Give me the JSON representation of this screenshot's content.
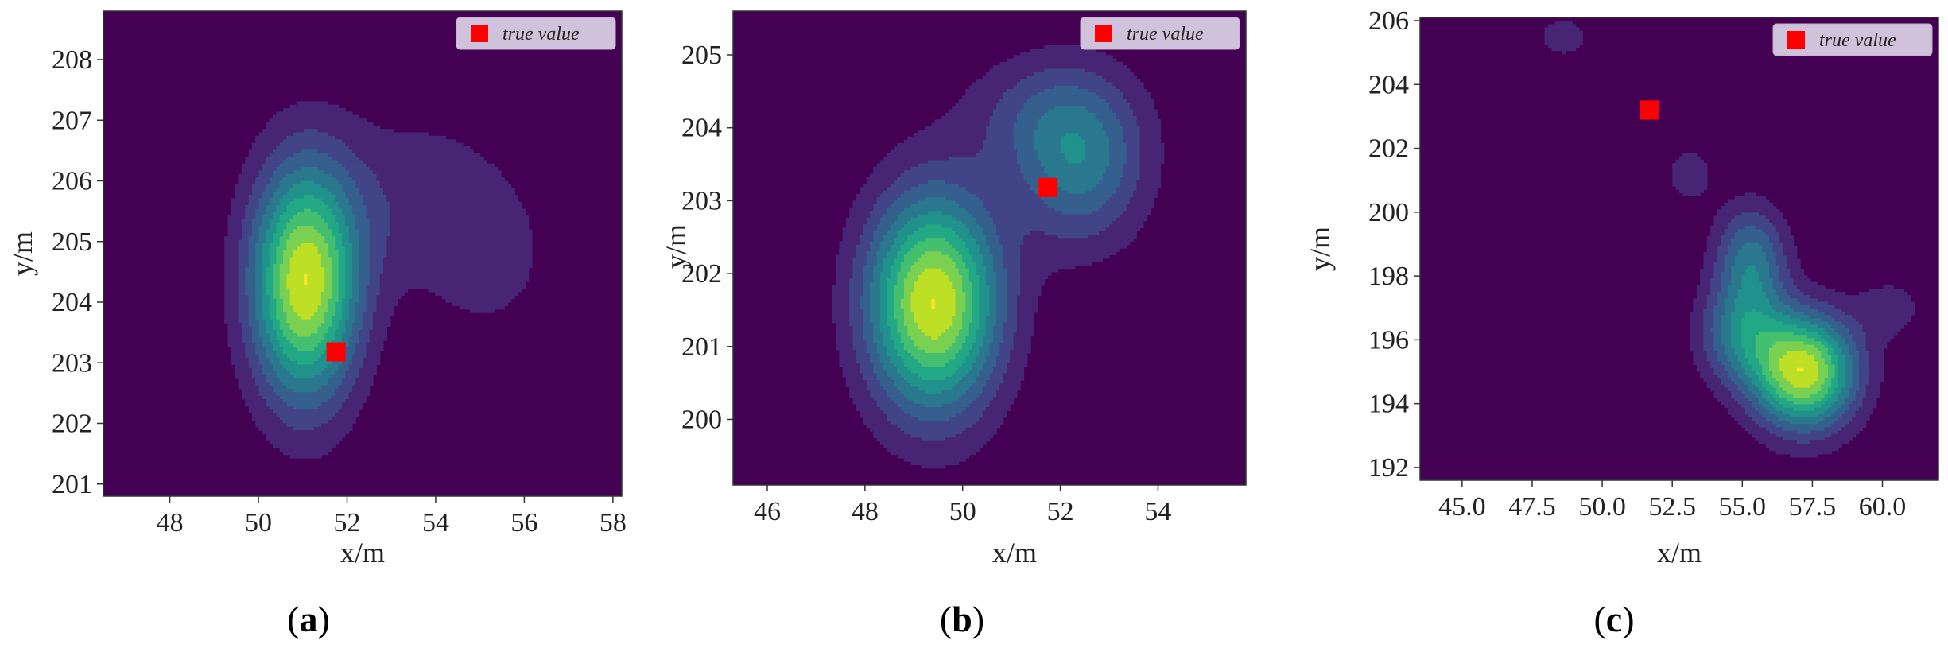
{
  "colors": {
    "background": "#440154",
    "marker": "#ff0000",
    "legend_bg": "#dcd3e6",
    "colormap": "viridis"
  },
  "chart_data": [
    {
      "id": "a",
      "type": "contour",
      "caption": "a",
      "xlabel": "x/m",
      "ylabel": "y/m",
      "xlim": [
        46.5,
        58.2
      ],
      "ylim": [
        200.8,
        208.8
      ],
      "xticks": [
        48,
        50,
        52,
        54,
        56,
        58
      ],
      "yticks": [
        201,
        202,
        203,
        204,
        205,
        206,
        207,
        208
      ],
      "legend": {
        "label": "true value",
        "position": "top-right"
      },
      "true_value": {
        "x": 51.75,
        "y": 203.18
      },
      "density_components": [
        {
          "x": 51.05,
          "y": 204.3,
          "sx": 0.85,
          "sy": 1.35,
          "w": 1.0
        },
        {
          "x": 53.6,
          "y": 205.7,
          "sx": 1.7,
          "sy": 1.1,
          "w": 0.16
        },
        {
          "x": 55.2,
          "y": 204.6,
          "sx": 0.9,
          "sy": 0.8,
          "w": 0.12
        }
      ]
    },
    {
      "id": "b",
      "type": "contour",
      "caption": "b",
      "xlabel": "x/m",
      "ylabel": "y/m",
      "xlim": [
        45.3,
        55.8
      ],
      "ylim": [
        199.1,
        205.6
      ],
      "xticks": [
        46,
        48,
        50,
        52,
        54
      ],
      "yticks": [
        200,
        201,
        202,
        203,
        204,
        205
      ],
      "legend": {
        "label": "true value",
        "position": "top-right"
      },
      "true_value": {
        "x": 51.75,
        "y": 203.18
      },
      "density_components": [
        {
          "x": 49.4,
          "y": 201.6,
          "sx": 0.95,
          "sy": 1.05,
          "w": 1.0
        },
        {
          "x": 52.4,
          "y": 203.5,
          "sx": 0.95,
          "sy": 0.8,
          "w": 0.42
        },
        {
          "x": 51.6,
          "y": 204.2,
          "sx": 1.2,
          "sy": 0.6,
          "w": 0.18
        }
      ]
    },
    {
      "id": "c",
      "type": "contour",
      "caption": "c",
      "xlabel": "x/m",
      "ylabel": "y/m",
      "xlim": [
        43.5,
        62.0
      ],
      "ylim": [
        191.6,
        206.1
      ],
      "xticks": [
        45.0,
        47.5,
        50.0,
        52.5,
        55.0,
        57.5,
        60.0
      ],
      "yticks": [
        192,
        194,
        196,
        198,
        200,
        202,
        204,
        206
      ],
      "legend": {
        "label": "true value",
        "position": "top-right"
      },
      "true_value": {
        "x": 51.7,
        "y": 203.2
      },
      "density_components": [
        {
          "x": 57.2,
          "y": 195.0,
          "sx": 1.3,
          "sy": 1.25,
          "w": 1.0
        },
        {
          "x": 55.3,
          "y": 198.5,
          "sx": 0.9,
          "sy": 1.2,
          "w": 0.45
        },
        {
          "x": 55.0,
          "y": 196.2,
          "sx": 1.1,
          "sy": 1.1,
          "w": 0.42
        },
        {
          "x": 60.3,
          "y": 197.0,
          "sx": 0.9,
          "sy": 0.7,
          "w": 0.15
        },
        {
          "x": 53.1,
          "y": 201.2,
          "sx": 0.7,
          "sy": 0.75,
          "w": 0.15
        },
        {
          "x": 48.6,
          "y": 205.5,
          "sx": 1.0,
          "sy": 0.7,
          "w": 0.13
        }
      ]
    }
  ]
}
